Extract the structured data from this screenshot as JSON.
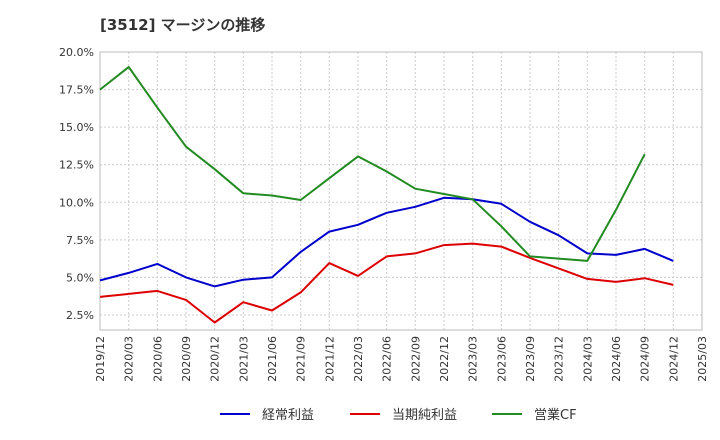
{
  "title": "[3512]  マージンの推移",
  "chart_data": {
    "type": "line",
    "title": "[3512]  マージンの推移",
    "x": [
      "2019/12",
      "2020/03",
      "2020/06",
      "2020/09",
      "2020/12",
      "2021/03",
      "2021/06",
      "2021/09",
      "2021/12",
      "2022/03",
      "2022/06",
      "2022/09",
      "2022/12",
      "2023/03",
      "2023/06",
      "2023/09",
      "2023/12",
      "2024/03",
      "2024/06",
      "2024/09",
      "2024/12",
      "2025/03"
    ],
    "ylim": [
      1.5,
      20.0
    ],
    "yticks": [
      2.5,
      5.0,
      7.5,
      10.0,
      12.5,
      15.0,
      17.5,
      20.0
    ],
    "ytick_labels": [
      "2.5%",
      "5.0%",
      "7.5%",
      "10.0%",
      "12.5%",
      "15.0%",
      "17.5%",
      "20.0%"
    ],
    "grid": true,
    "legend_position": "bottom",
    "series": [
      {
        "name": "経常利益",
        "color": "#0000cc",
        "values": [
          4.8,
          5.3,
          5.9,
          5.0,
          4.4,
          4.85,
          5.0,
          6.7,
          8.05,
          8.5,
          9.3,
          9.7,
          10.3,
          10.2,
          9.9,
          8.7,
          7.8,
          6.6,
          6.5,
          6.9,
          6.1,
          null
        ]
      },
      {
        "name": "当期純利益",
        "color": "#dd0000",
        "values": [
          3.7,
          3.9,
          4.1,
          3.5,
          2.0,
          3.35,
          2.8,
          4.0,
          5.95,
          5.1,
          6.4,
          6.6,
          7.15,
          7.25,
          7.05,
          6.3,
          5.6,
          4.9,
          4.7,
          4.95,
          4.5,
          null
        ]
      },
      {
        "name": "営業CF",
        "color": "#228b22",
        "values": [
          17.5,
          19.0,
          16.3,
          13.7,
          12.2,
          10.6,
          10.45,
          10.15,
          11.6,
          13.05,
          12.05,
          10.9,
          10.55,
          10.2,
          8.4,
          6.4,
          6.25,
          6.1,
          9.5,
          13.2,
          null,
          null
        ]
      }
    ]
  }
}
